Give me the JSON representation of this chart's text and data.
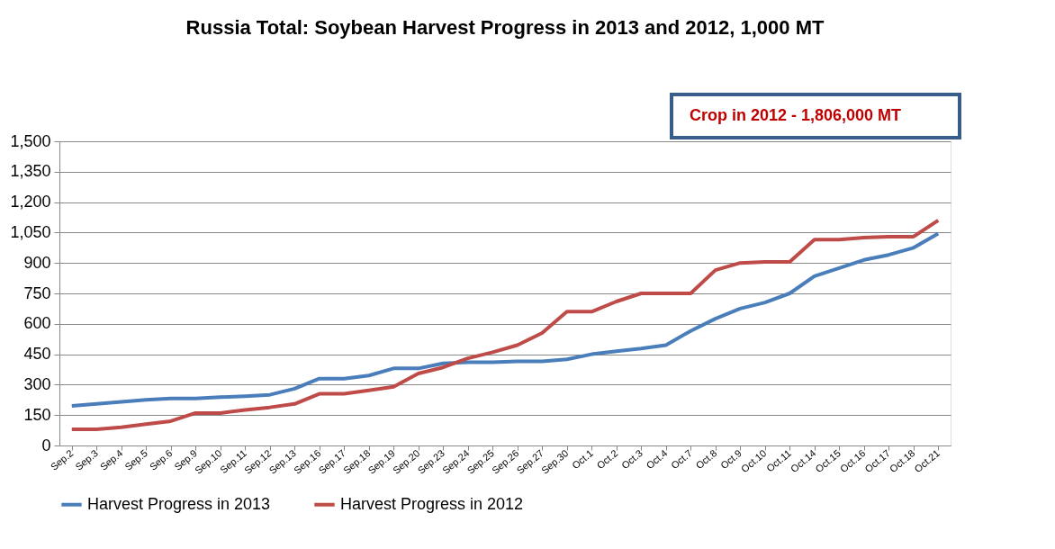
{
  "chart_data": {
    "type": "line",
    "title": "Russia Total: Soybean Harvest Progress in 2013 and 2012, 1,000 MT",
    "categories": [
      "Sep.2",
      "Sep.3",
      "Sep.4",
      "Sep.5",
      "Sep.6",
      "Sep.9",
      "Sep.10",
      "Sep.11",
      "Sep.12",
      "Sep.13",
      "Sep.16",
      "Sep.17",
      "Sep.18",
      "Sep.19",
      "Sep.20",
      "Sep.23",
      "Sep.24",
      "Sep.25",
      "Sep.26",
      "Sep.27",
      "Sep.30",
      "Oct.1",
      "Oct.2",
      "Oct.3",
      "Oct.4",
      "Oct.7",
      "Oct.8",
      "Oct.9",
      "Oct.10",
      "Oct.11",
      "Oct.14",
      "Oct.15",
      "Oct.16",
      "Oct.17",
      "Oct.18",
      "Oct.21"
    ],
    "series": [
      {
        "name": "Harvest Progress in 2013",
        "color": "#4a7ebb",
        "values": [
          195,
          205,
          215,
          225,
          232,
          232,
          238,
          243,
          250,
          280,
          330,
          330,
          345,
          380,
          380,
          405,
          410,
          410,
          415,
          415,
          425,
          450,
          465,
          478,
          495,
          565,
          625,
          675,
          705,
          750,
          835,
          875,
          915,
          940,
          975,
          1045
        ]
      },
      {
        "name": "Harvest Progress in 2012",
        "color": "#be4b48",
        "values": [
          80,
          80,
          90,
          105,
          120,
          160,
          160,
          175,
          188,
          205,
          255,
          255,
          272,
          290,
          355,
          385,
          430,
          460,
          495,
          555,
          660,
          660,
          710,
          750,
          750,
          750,
          865,
          900,
          905,
          905,
          1015,
          1015,
          1025,
          1030,
          1030,
          1110
        ]
      }
    ],
    "ylim": [
      0,
      1500
    ],
    "yticks": [
      0,
      150,
      300,
      450,
      600,
      750,
      900,
      {
        "value": 1050,
        "label": "1,050"
      },
      {
        "value": 1200,
        "label": "1,200"
      },
      {
        "value": 1350,
        "label": "1,350"
      },
      {
        "value": 1500,
        "label": "1,500"
      }
    ],
    "grid": "y",
    "legend": "bottom",
    "line_style": "solid",
    "marker": "none",
    "annotations": [
      "Crop in 2012 - 1,806,000 MT"
    ]
  }
}
